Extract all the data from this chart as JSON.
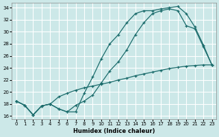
{
  "xlabel": "Humidex (Indice chaleur)",
  "bg_color": "#cce8e8",
  "line_color": "#1a6b6b",
  "grid_color": "#b0d0d0",
  "xlim": [
    -0.5,
    23.5
  ],
  "ylim": [
    15.5,
    34.8
  ],
  "xticks": [
    0,
    1,
    2,
    3,
    4,
    5,
    6,
    7,
    8,
    9,
    10,
    11,
    12,
    13,
    14,
    15,
    16,
    17,
    18,
    19,
    20,
    21,
    22,
    23
  ],
  "yticks": [
    16,
    18,
    20,
    22,
    24,
    26,
    28,
    30,
    32,
    34
  ],
  "line1_x": [
    0,
    1,
    2,
    3,
    4,
    5,
    6,
    7,
    8,
    9,
    10,
    11,
    12,
    13,
    14,
    15,
    16,
    17,
    18,
    19,
    20,
    21,
    22,
    23
  ],
  "line1_y": [
    18.5,
    17.8,
    16.2,
    17.7,
    18.0,
    17.2,
    16.7,
    16.7,
    19.8,
    22.5,
    25.5,
    28.0,
    29.5,
    31.5,
    33.0,
    33.5,
    33.5,
    33.8,
    34.0,
    34.2,
    33.0,
    30.8,
    27.8,
    24.5
  ],
  "line2_x": [
    0,
    1,
    2,
    3,
    4,
    5,
    6,
    7,
    8,
    9,
    10,
    11,
    12,
    13,
    14,
    15,
    16,
    17,
    18,
    19,
    20,
    21,
    22,
    23
  ],
  "line2_y": [
    18.5,
    17.8,
    16.2,
    17.7,
    18.0,
    17.2,
    16.7,
    17.8,
    18.5,
    19.5,
    21.5,
    23.5,
    25.0,
    27.0,
    29.5,
    31.5,
    33.0,
    33.5,
    33.8,
    33.5,
    31.0,
    30.5,
    27.5,
    24.5
  ],
  "line3_x": [
    0,
    1,
    2,
    3,
    4,
    5,
    6,
    7,
    8,
    9,
    10,
    11,
    12,
    13,
    14,
    15,
    16,
    17,
    18,
    19,
    20,
    21,
    22,
    23
  ],
  "line3_y": [
    18.5,
    17.8,
    16.2,
    17.7,
    18.0,
    19.2,
    19.8,
    20.3,
    20.7,
    21.0,
    21.3,
    21.6,
    22.0,
    22.3,
    22.7,
    23.0,
    23.3,
    23.6,
    23.9,
    24.1,
    24.3,
    24.4,
    24.5,
    24.5
  ]
}
